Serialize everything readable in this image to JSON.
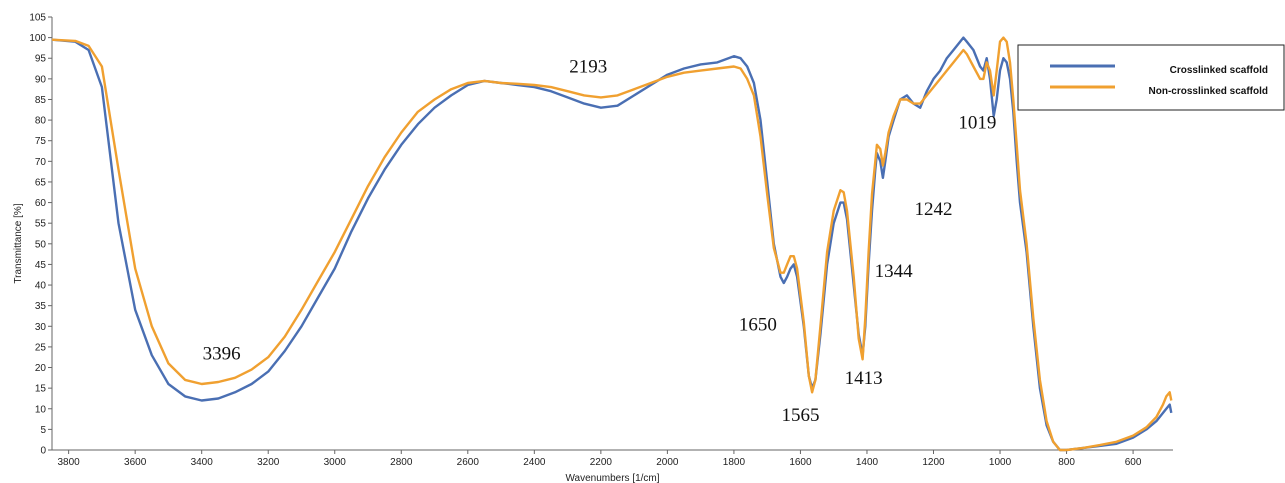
{
  "chart_data": {
    "type": "line",
    "title": "",
    "xlabel": "Wavenumbers [1/cm]",
    "ylabel": "Transmittance [%]",
    "xlim": [
      3850,
      480
    ],
    "ylim": [
      0,
      105
    ],
    "x_reversed": true,
    "grid": false,
    "legend_position": "top-right",
    "xticks": [
      3800,
      3600,
      3400,
      3200,
      3000,
      2800,
      2600,
      2400,
      2200,
      2000,
      1800,
      1600,
      1400,
      1200,
      1000,
      800,
      600
    ],
    "yticks": [
      0,
      5,
      10,
      15,
      20,
      25,
      30,
      35,
      40,
      45,
      50,
      55,
      60,
      65,
      70,
      75,
      80,
      85,
      90,
      95,
      100,
      105
    ],
    "series": [
      {
        "name": "Crosslinked scaffold",
        "color": "#4a6fb3",
        "points": [
          [
            3850,
            99.5
          ],
          [
            3780,
            99
          ],
          [
            3740,
            97
          ],
          [
            3700,
            88
          ],
          [
            3650,
            55
          ],
          [
            3600,
            34
          ],
          [
            3550,
            23
          ],
          [
            3500,
            16
          ],
          [
            3450,
            13
          ],
          [
            3400,
            12
          ],
          [
            3350,
            12.5
          ],
          [
            3300,
            14
          ],
          [
            3250,
            16
          ],
          [
            3200,
            19
          ],
          [
            3150,
            24
          ],
          [
            3100,
            30
          ],
          [
            3050,
            37
          ],
          [
            3000,
            44
          ],
          [
            2950,
            53
          ],
          [
            2900,
            61
          ],
          [
            2850,
            68
          ],
          [
            2800,
            74
          ],
          [
            2750,
            79
          ],
          [
            2700,
            83
          ],
          [
            2650,
            86
          ],
          [
            2600,
            88.5
          ],
          [
            2550,
            89.5
          ],
          [
            2500,
            89
          ],
          [
            2450,
            88.5
          ],
          [
            2400,
            88
          ],
          [
            2350,
            87
          ],
          [
            2300,
            85.5
          ],
          [
            2250,
            84
          ],
          [
            2200,
            83
          ],
          [
            2150,
            83.5
          ],
          [
            2100,
            86
          ],
          [
            2050,
            88.5
          ],
          [
            2000,
            91
          ],
          [
            1950,
            92.5
          ],
          [
            1900,
            93.5
          ],
          [
            1850,
            94
          ],
          [
            1800,
            95.5
          ],
          [
            1780,
            95
          ],
          [
            1760,
            93
          ],
          [
            1740,
            89
          ],
          [
            1720,
            80
          ],
          [
            1700,
            65
          ],
          [
            1680,
            50
          ],
          [
            1660,
            42
          ],
          [
            1650,
            40.5
          ],
          [
            1640,
            42
          ],
          [
            1630,
            44
          ],
          [
            1620,
            45
          ],
          [
            1610,
            42
          ],
          [
            1590,
            30
          ],
          [
            1575,
            18
          ],
          [
            1565,
            15
          ],
          [
            1555,
            17
          ],
          [
            1540,
            28
          ],
          [
            1520,
            45
          ],
          [
            1500,
            55
          ],
          [
            1480,
            60
          ],
          [
            1470,
            60
          ],
          [
            1460,
            56
          ],
          [
            1440,
            40
          ],
          [
            1425,
            28
          ],
          [
            1413,
            23
          ],
          [
            1405,
            30
          ],
          [
            1395,
            45
          ],
          [
            1385,
            58
          ],
          [
            1375,
            68
          ],
          [
            1370,
            72
          ],
          [
            1360,
            70
          ],
          [
            1352,
            66
          ],
          [
            1345,
            70
          ],
          [
            1335,
            76
          ],
          [
            1320,
            80
          ],
          [
            1300,
            85
          ],
          [
            1280,
            86
          ],
          [
            1260,
            84
          ],
          [
            1240,
            83
          ],
          [
            1220,
            87
          ],
          [
            1200,
            90
          ],
          [
            1180,
            92
          ],
          [
            1160,
            95
          ],
          [
            1140,
            97
          ],
          [
            1120,
            99
          ],
          [
            1110,
            100
          ],
          [
            1100,
            99
          ],
          [
            1080,
            97
          ],
          [
            1060,
            93
          ],
          [
            1050,
            92
          ],
          [
            1040,
            95
          ],
          [
            1030,
            90
          ],
          [
            1019,
            81
          ],
          [
            1010,
            85
          ],
          [
            1000,
            92
          ],
          [
            990,
            95
          ],
          [
            980,
            94
          ],
          [
            970,
            90
          ],
          [
            960,
            82
          ],
          [
            950,
            70
          ],
          [
            940,
            60
          ],
          [
            920,
            48
          ],
          [
            900,
            30
          ],
          [
            880,
            15
          ],
          [
            860,
            6
          ],
          [
            840,
            2
          ],
          [
            820,
            0
          ],
          [
            800,
            0
          ],
          [
            750,
            0.5
          ],
          [
            700,
            1
          ],
          [
            650,
            1.5
          ],
          [
            600,
            3
          ],
          [
            560,
            5
          ],
          [
            530,
            7
          ],
          [
            510,
            9
          ],
          [
            500,
            10
          ],
          [
            490,
            11
          ],
          [
            485,
            9
          ]
        ]
      },
      {
        "name": "Non-crosslinked scaffold",
        "color": "#f0a030",
        "points": [
          [
            3850,
            99.5
          ],
          [
            3780,
            99.2
          ],
          [
            3740,
            98
          ],
          [
            3700,
            93
          ],
          [
            3650,
            68
          ],
          [
            3600,
            44
          ],
          [
            3550,
            30
          ],
          [
            3500,
            21
          ],
          [
            3450,
            17
          ],
          [
            3400,
            16
          ],
          [
            3350,
            16.5
          ],
          [
            3300,
            17.5
          ],
          [
            3250,
            19.5
          ],
          [
            3200,
            22.5
          ],
          [
            3150,
            27.5
          ],
          [
            3100,
            34
          ],
          [
            3050,
            41
          ],
          [
            3000,
            48
          ],
          [
            2950,
            56
          ],
          [
            2900,
            64
          ],
          [
            2850,
            71
          ],
          [
            2800,
            77
          ],
          [
            2750,
            82
          ],
          [
            2700,
            85
          ],
          [
            2650,
            87.5
          ],
          [
            2600,
            89
          ],
          [
            2550,
            89.5
          ],
          [
            2500,
            89
          ],
          [
            2450,
            88.8
          ],
          [
            2400,
            88.5
          ],
          [
            2350,
            88
          ],
          [
            2300,
            87
          ],
          [
            2250,
            86
          ],
          [
            2200,
            85.5
          ],
          [
            2150,
            86
          ],
          [
            2100,
            87.5
          ],
          [
            2050,
            89
          ],
          [
            2000,
            90.5
          ],
          [
            1950,
            91.5
          ],
          [
            1900,
            92
          ],
          [
            1850,
            92.5
          ],
          [
            1800,
            93
          ],
          [
            1780,
            92.5
          ],
          [
            1760,
            90
          ],
          [
            1740,
            86
          ],
          [
            1720,
            76
          ],
          [
            1700,
            62
          ],
          [
            1680,
            49
          ],
          [
            1660,
            43
          ],
          [
            1650,
            43
          ],
          [
            1640,
            45
          ],
          [
            1630,
            47
          ],
          [
            1620,
            47
          ],
          [
            1610,
            44
          ],
          [
            1590,
            31
          ],
          [
            1575,
            18
          ],
          [
            1565,
            14
          ],
          [
            1555,
            17
          ],
          [
            1540,
            30
          ],
          [
            1520,
            48
          ],
          [
            1500,
            58
          ],
          [
            1480,
            63
          ],
          [
            1470,
            62.5
          ],
          [
            1460,
            58
          ],
          [
            1440,
            42
          ],
          [
            1425,
            27
          ],
          [
            1413,
            22
          ],
          [
            1405,
            32
          ],
          [
            1395,
            48
          ],
          [
            1385,
            62
          ],
          [
            1375,
            70
          ],
          [
            1370,
            74
          ],
          [
            1360,
            73
          ],
          [
            1352,
            69
          ],
          [
            1345,
            72
          ],
          [
            1335,
            77
          ],
          [
            1320,
            81
          ],
          [
            1300,
            85
          ],
          [
            1280,
            85
          ],
          [
            1260,
            84
          ],
          [
            1240,
            84
          ],
          [
            1220,
            86
          ],
          [
            1200,
            88
          ],
          [
            1180,
            90
          ],
          [
            1160,
            92
          ],
          [
            1140,
            94
          ],
          [
            1120,
            96
          ],
          [
            1110,
            97
          ],
          [
            1100,
            96
          ],
          [
            1080,
            93
          ],
          [
            1060,
            90
          ],
          [
            1050,
            90
          ],
          [
            1040,
            94
          ],
          [
            1030,
            92
          ],
          [
            1019,
            86
          ],
          [
            1010,
            92
          ],
          [
            1000,
            99
          ],
          [
            990,
            100
          ],
          [
            980,
            99
          ],
          [
            970,
            94
          ],
          [
            960,
            85
          ],
          [
            950,
            74
          ],
          [
            940,
            63
          ],
          [
            920,
            50
          ],
          [
            900,
            32
          ],
          [
            880,
            17
          ],
          [
            860,
            7
          ],
          [
            840,
            2
          ],
          [
            820,
            0
          ],
          [
            800,
            0
          ],
          [
            750,
            0.5
          ],
          [
            700,
            1.2
          ],
          [
            650,
            2
          ],
          [
            600,
            3.5
          ],
          [
            560,
            5.5
          ],
          [
            530,
            8
          ],
          [
            510,
            11
          ],
          [
            500,
            13
          ],
          [
            490,
            14
          ],
          [
            485,
            12
          ]
        ]
      }
    ],
    "annotations": [
      {
        "text": "3396",
        "x": 3340,
        "y": 22
      },
      {
        "text": "2193",
        "x": 2238,
        "y": 91.5
      },
      {
        "text": "1650",
        "x": 1728,
        "y": 29
      },
      {
        "text": "1565",
        "x": 1600,
        "y": 7
      },
      {
        "text": "1413",
        "x": 1410,
        "y": 16
      },
      {
        "text": "1344",
        "x": 1320,
        "y": 42
      },
      {
        "text": "1242",
        "x": 1200,
        "y": 57
      },
      {
        "text": "1019",
        "x": 1068,
        "y": 78
      }
    ]
  }
}
